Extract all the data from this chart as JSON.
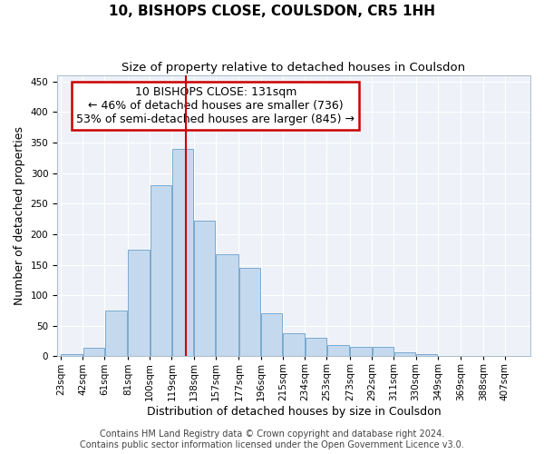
{
  "title": "10, BISHOPS CLOSE, COULSDON, CR5 1HH",
  "subtitle": "Size of property relative to detached houses in Coulsdon",
  "xlabel": "Distribution of detached houses by size in Coulsdon",
  "ylabel": "Number of detached properties",
  "bar_labels": [
    "23sqm",
    "42sqm",
    "61sqm",
    "81sqm",
    "100sqm",
    "119sqm",
    "138sqm",
    "157sqm",
    "177sqm",
    "196sqm",
    "215sqm",
    "234sqm",
    "253sqm",
    "273sqm",
    "292sqm",
    "311sqm",
    "330sqm",
    "349sqm",
    "369sqm",
    "388sqm",
    "407sqm"
  ],
  "bar_values": [
    3,
    14,
    75,
    175,
    280,
    340,
    222,
    167,
    145,
    70,
    38,
    30,
    18,
    15,
    15,
    7,
    4,
    0,
    0,
    0,
    0
  ],
  "bar_color": "#c5d9ee",
  "bar_edge_color": "#7aaad0",
  "annotation_line1": "10 BISHOPS CLOSE: 131sqm",
  "annotation_line2": "← 46% of detached houses are smaller (736)",
  "annotation_line3": "53% of semi-detached houses are larger (845) →",
  "annotation_box_color": "#ffffff",
  "annotation_box_edge_color": "#cc0000",
  "vline_x": 131,
  "vline_color": "#cc0000",
  "ylim": [
    0,
    460
  ],
  "bin_edges": [
    23,
    42,
    61,
    81,
    100,
    119,
    138,
    157,
    177,
    196,
    215,
    234,
    253,
    273,
    292,
    311,
    330,
    349,
    369,
    388,
    407,
    426
  ],
  "background_color": "#eef2f8",
  "grid_color": "#ffffff",
  "footer_text": "Contains HM Land Registry data © Crown copyright and database right 2024.\nContains public sector information licensed under the Open Government Licence v3.0.",
  "title_fontsize": 11,
  "subtitle_fontsize": 9.5,
  "axis_label_fontsize": 9,
  "tick_fontsize": 7.5,
  "annotation_fontsize": 9,
  "footer_fontsize": 7
}
